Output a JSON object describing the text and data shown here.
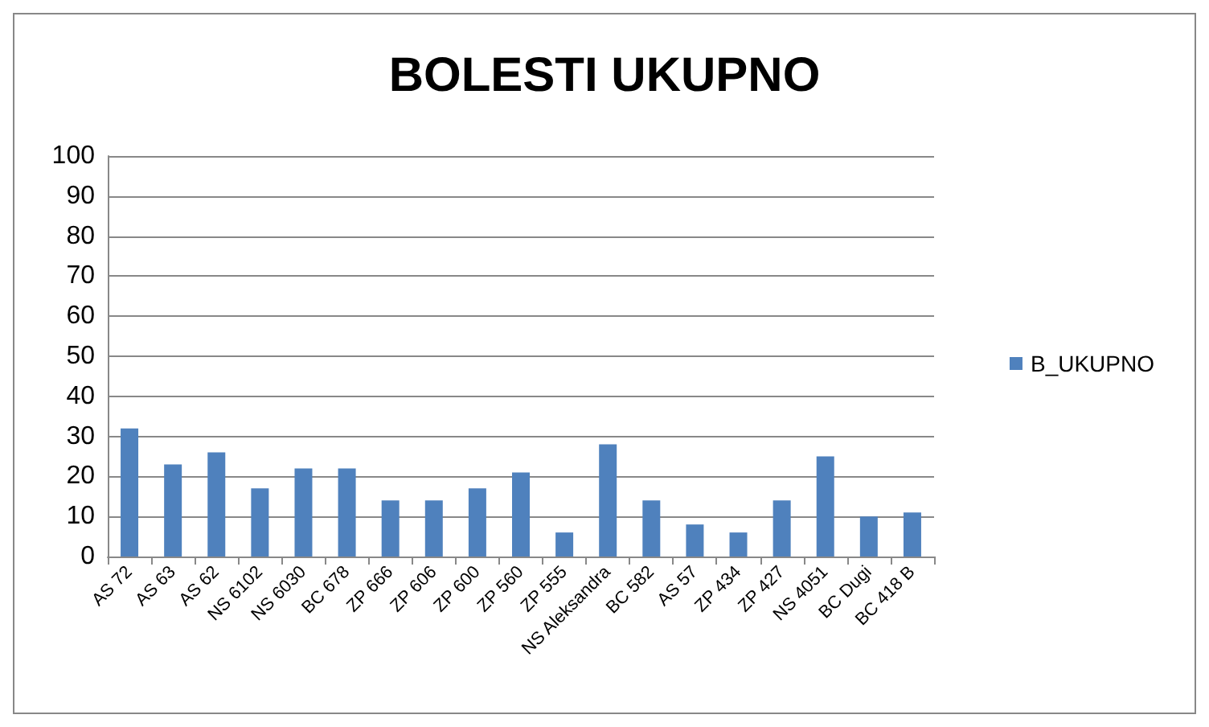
{
  "chart_data": {
    "type": "bar",
    "title": "BOLESTI UKUPNO",
    "categories": [
      "AS 72",
      "AS 63",
      "AS 62",
      "NS 6102",
      "NS 6030",
      "BC 678",
      "ZP 666",
      "ZP 606",
      "ZP 600",
      "ZP 560",
      "ZP 555",
      "NS Aleksandra",
      "BC 582",
      "AS 57",
      "ZP 434",
      "ZP 427",
      "NS 4051",
      "BC Dugi",
      "BC 418 B"
    ],
    "series": [
      {
        "name": "B_UKUPNO",
        "color": "#4f81bd",
        "values": [
          32,
          23,
          26,
          17,
          22,
          22,
          14,
          14,
          17,
          21,
          6,
          28,
          14,
          8,
          6,
          14,
          25,
          10,
          11
        ]
      }
    ],
    "ylim": [
      0,
      100
    ],
    "yticks": [
      0,
      10,
      20,
      30,
      40,
      50,
      60,
      70,
      80,
      90,
      100
    ],
    "grid": "y",
    "legend": "right"
  }
}
